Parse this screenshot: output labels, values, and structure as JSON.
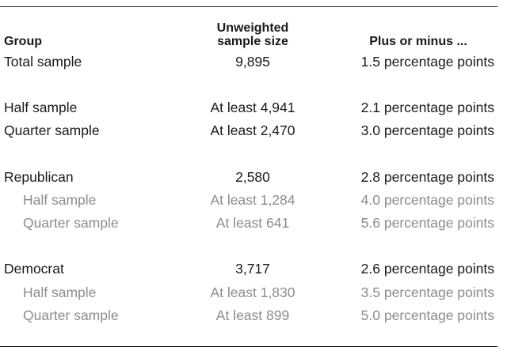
{
  "header": {
    "group": "Group",
    "sample_size_line1": "Unweighted",
    "sample_size_line2": "sample size",
    "margin": "Plus or minus ..."
  },
  "rows": [
    {
      "group": "Total sample",
      "size": "9,895",
      "margin": "1.5 percentage points",
      "sub": false
    },
    {
      "group": "Half sample",
      "size": "At least 4,941",
      "margin": "2.1 percentage points",
      "sub": false
    },
    {
      "group": "Quarter sample",
      "size": "At least 2,470",
      "margin": "3.0 percentage points",
      "sub": false
    },
    {
      "group": "Republican",
      "size": "2,580",
      "margin": "2.8 percentage points",
      "sub": false
    },
    {
      "group": "Half sample",
      "size": "At least 1,284",
      "margin": "4.0 percentage points",
      "sub": true
    },
    {
      "group": "Quarter sample",
      "size": "At least 641",
      "margin": "5.6 percentage points",
      "sub": true
    },
    {
      "group": "Democrat",
      "size": "3,717",
      "margin": "2.6 percentage points",
      "sub": false
    },
    {
      "group": "Half sample",
      "size": "At least 1,830",
      "margin": "3.5 percentage points",
      "sub": true
    },
    {
      "group": "Quarter sample",
      "size": "At least 899",
      "margin": "5.0 percentage points",
      "sub": true
    }
  ],
  "colors": {
    "text": "#1a1a1a",
    "subtext": "#8c8c8c",
    "rule": "#222222"
  }
}
